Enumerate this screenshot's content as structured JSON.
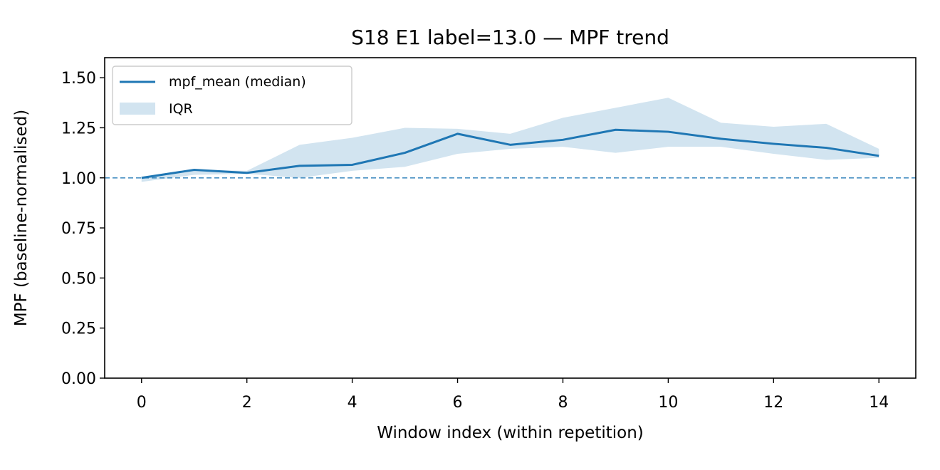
{
  "chart_data": {
    "type": "line",
    "title": "S18 E1 label=13.0 — MPF trend",
    "xlabel": "Window index (within repetition)",
    "ylabel": "MPF (baseline-normalised)",
    "x": [
      0,
      1,
      2,
      3,
      4,
      5,
      6,
      7,
      8,
      9,
      10,
      11,
      12,
      13,
      14
    ],
    "xlim": [
      -0.7,
      14.7
    ],
    "ylim": [
      0,
      1.6
    ],
    "xticks": [
      0,
      2,
      4,
      6,
      8,
      10,
      12,
      14
    ],
    "xtick_labels": [
      "0",
      "2",
      "4",
      "6",
      "8",
      "10",
      "12",
      "14"
    ],
    "yticks": [
      0,
      0.25,
      0.5,
      0.75,
      1.0,
      1.25,
      1.5
    ],
    "ytick_labels": [
      "0.00",
      "0.25",
      "0.50",
      "0.75",
      "1.00",
      "1.25",
      "1.50"
    ],
    "series": [
      {
        "name": "mpf_median",
        "label": "mpf_mean (median)",
        "color": "#1f77b4",
        "values": [
          1.0,
          1.04,
          1.025,
          1.06,
          1.065,
          1.125,
          1.22,
          1.165,
          1.19,
          1.24,
          1.23,
          1.195,
          1.17,
          1.15,
          1.11
        ]
      }
    ],
    "band": {
      "label": "IQR",
      "color": "#1f77b4",
      "opacity": 0.2,
      "lower": [
        0.98,
        1.015,
        1.02,
        1.0,
        1.035,
        1.055,
        1.12,
        1.145,
        1.155,
        1.125,
        1.155,
        1.155,
        1.12,
        1.09,
        1.1
      ],
      "upper": [
        1.005,
        1.04,
        1.035,
        1.165,
        1.2,
        1.25,
        1.245,
        1.22,
        1.3,
        1.35,
        1.4,
        1.275,
        1.255,
        1.27,
        1.145
      ]
    },
    "reference_line": {
      "y": 1.0,
      "style": "dashed",
      "color": "#1f77b4"
    },
    "legend": {
      "position": "top-left",
      "items": [
        {
          "label": "mpf_mean (median)",
          "kind": "line"
        },
        {
          "label": "IQR",
          "kind": "patch"
        }
      ]
    },
    "grid": false
  }
}
